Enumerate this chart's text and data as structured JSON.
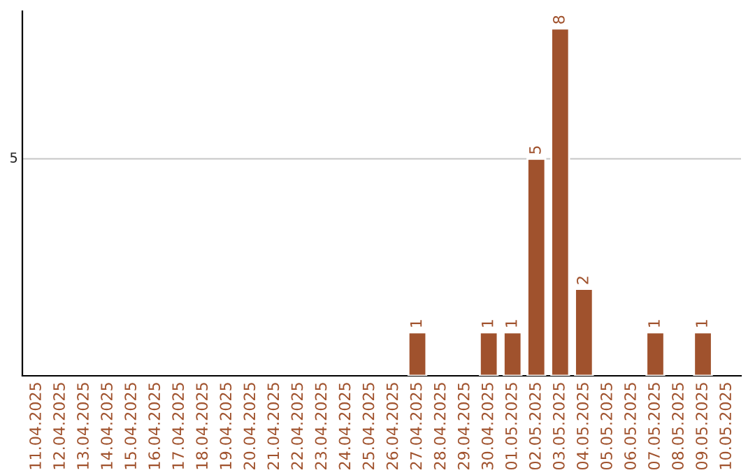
{
  "chart_data": {
    "type": "bar",
    "categories": [
      "11.04.2025",
      "12.04.2025",
      "13.04.2025",
      "14.04.2025",
      "15.04.2025",
      "16.04.2025",
      "17.04.2025",
      "18.04.2025",
      "19.04.2025",
      "20.04.2025",
      "21.04.2025",
      "22.04.2025",
      "23.04.2025",
      "24.04.2025",
      "25.04.2025",
      "26.04.2025",
      "27.04.2025",
      "28.04.2025",
      "29.04.2025",
      "30.04.2025",
      "01.05.2025",
      "02.05.2025",
      "03.05.2025",
      "04.05.2025",
      "05.05.2025",
      "06.05.2025",
      "07.05.2025",
      "08.05.2025",
      "09.05.2025",
      "10.05.2025"
    ],
    "series": [
      {
        "color": "#a0522d",
        "values": [
          null,
          null,
          null,
          null,
          null,
          null,
          null,
          null,
          null,
          null,
          null,
          null,
          null,
          null,
          null,
          null,
          1,
          null,
          null,
          1,
          1,
          5,
          8,
          2,
          null,
          null,
          1,
          null,
          1,
          null
        ]
      }
    ],
    "data_labels": true,
    "ylim": [
      0,
      8.4
    ],
    "ref_lines": [
      {
        "axis": "y",
        "value": 5,
        "label": "5",
        "color": "#cccccc"
      }
    ]
  }
}
